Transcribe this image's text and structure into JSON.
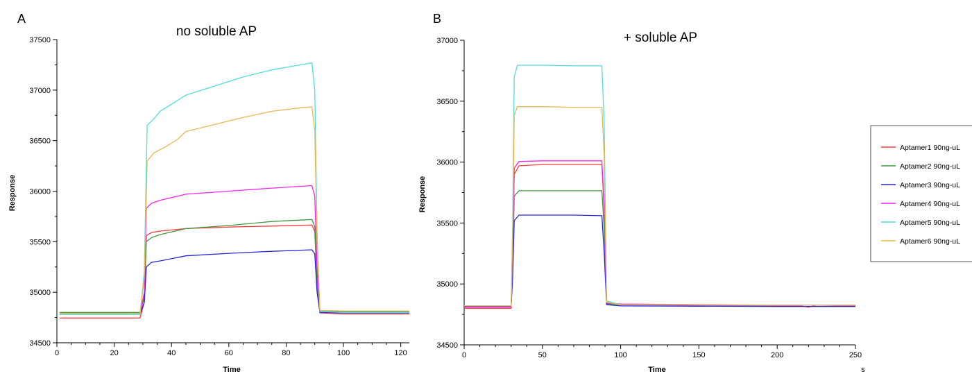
{
  "chart_data": [
    {
      "panel_label": "A",
      "type": "line",
      "title": "no soluble AP",
      "xlabel": "Time",
      "ylabel": "Response",
      "xlim": [
        0,
        123
      ],
      "ylim": [
        34500,
        37500
      ],
      "xticks": [
        0,
        20,
        40,
        60,
        80,
        100,
        120
      ],
      "yticks": [
        34500,
        35000,
        35500,
        36000,
        36500,
        37000,
        37500
      ],
      "x_minor_step": 5,
      "series": [
        {
          "color": "#ff3b3b",
          "points": [
            [
              1,
              34745
            ],
            [
              29,
              34745
            ],
            [
              30.5,
              34900
            ],
            [
              31.2,
              35560
            ],
            [
              33,
              35590
            ],
            [
              36,
              35605
            ],
            [
              45,
              35630
            ],
            [
              60,
              35645
            ],
            [
              75,
              35655
            ],
            [
              89,
              35665
            ],
            [
              90,
              35600
            ],
            [
              90.8,
              35100
            ],
            [
              91.8,
              34795
            ],
            [
              100,
              34785
            ],
            [
              123,
              34785
            ]
          ]
        },
        {
          "color": "#3c9a3c",
          "points": [
            [
              1,
              34800
            ],
            [
              29,
              34800
            ],
            [
              30.5,
              34950
            ],
            [
              31.2,
              35500
            ],
            [
              33,
              35540
            ],
            [
              36,
              35570
            ],
            [
              45,
              35630
            ],
            [
              60,
              35660
            ],
            [
              75,
              35700
            ],
            [
              89,
              35720
            ],
            [
              90,
              35650
            ],
            [
              90.8,
              35150
            ],
            [
              91.8,
              34810
            ],
            [
              100,
              34810
            ],
            [
              123,
              34810
            ]
          ]
        },
        {
          "color": "#2424e0",
          "points": [
            [
              1,
              34785
            ],
            [
              29,
              34785
            ],
            [
              30.5,
              34900
            ],
            [
              31.2,
              35250
            ],
            [
              33,
              35295
            ],
            [
              36,
              35310
            ],
            [
              45,
              35360
            ],
            [
              60,
              35385
            ],
            [
              75,
              35405
            ],
            [
              89,
              35420
            ],
            [
              90,
              35380
            ],
            [
              90.8,
              35000
            ],
            [
              91.8,
              34800
            ],
            [
              100,
              34795
            ],
            [
              123,
              34795
            ]
          ]
        },
        {
          "color": "#f224f2",
          "points": [
            [
              1,
              34790
            ],
            [
              29,
              34790
            ],
            [
              30.5,
              35000
            ],
            [
              31.2,
              35830
            ],
            [
              33,
              35880
            ],
            [
              36,
              35910
            ],
            [
              45,
              35970
            ],
            [
              60,
              36000
            ],
            [
              75,
              36030
            ],
            [
              89,
              36055
            ],
            [
              90,
              35950
            ],
            [
              90.8,
              35250
            ],
            [
              91.8,
              34810
            ],
            [
              100,
              34800
            ],
            [
              123,
              34800
            ]
          ]
        },
        {
          "color": "#4fdcdc",
          "points": [
            [
              1,
              34780
            ],
            [
              29,
              34780
            ],
            [
              30.5,
              35200
            ],
            [
              31.5,
              36650
            ],
            [
              34,
              36720
            ],
            [
              36,
              36790
            ],
            [
              40,
              36860
            ],
            [
              45,
              36950
            ],
            [
              55,
              37040
            ],
            [
              65,
              37130
            ],
            [
              75,
              37200
            ],
            [
              85,
              37250
            ],
            [
              89,
              37270
            ],
            [
              90,
              37000
            ],
            [
              90.8,
              35600
            ],
            [
              91.8,
              34810
            ],
            [
              100,
              34800
            ],
            [
              123,
              34800
            ]
          ]
        },
        {
          "color": "#e9b74e",
          "points": [
            [
              1,
              34790
            ],
            [
              29,
              34790
            ],
            [
              30.5,
              35150
            ],
            [
              31.5,
              36300
            ],
            [
              34,
              36380
            ],
            [
              38,
              36440
            ],
            [
              42,
              36510
            ],
            [
              45,
              36590
            ],
            [
              55,
              36660
            ],
            [
              65,
              36730
            ],
            [
              75,
              36790
            ],
            [
              85,
              36825
            ],
            [
              89,
              36835
            ],
            [
              90,
              36600
            ],
            [
              90.8,
              35500
            ],
            [
              91.8,
              34820
            ],
            [
              100,
              34815
            ],
            [
              123,
              34815
            ]
          ]
        }
      ]
    },
    {
      "panel_label": "B",
      "type": "line",
      "title": "+ soluble AP",
      "xlabel": "Time",
      "ylabel": "Response",
      "x_unit_label": "s",
      "xlim": [
        0,
        250
      ],
      "ylim": [
        34500,
        37000
      ],
      "xticks": [
        0,
        50,
        100,
        150,
        200,
        250
      ],
      "yticks": [
        34500,
        35000,
        35500,
        36000,
        36500,
        37000
      ],
      "x_minor_step": 10,
      "legend": {
        "position": "right",
        "entries": [
          {
            "label": "Aptamer1 90ng-uL",
            "color": "#ff3b3b"
          },
          {
            "label": "Aptamer2 90ng-uL",
            "color": "#3c9a3c"
          },
          {
            "label": "Aptamer3 90ng-uL",
            "color": "#2424e0"
          },
          {
            "label": "Aptamer4 90ng-uL",
            "color": "#f224f2"
          },
          {
            "label": "Aptamer5 90ng-uL",
            "color": "#4fdcdc"
          },
          {
            "label": "Aptamer6 90ng-uL",
            "color": "#e9b74e"
          }
        ]
      },
      "series": [
        {
          "color": "#ff3b3b",
          "points": [
            [
              0,
              34800
            ],
            [
              30,
              34800
            ],
            [
              31,
              35200
            ],
            [
              32,
              35900
            ],
            [
              35,
              35970
            ],
            [
              50,
              35980
            ],
            [
              70,
              35980
            ],
            [
              88,
              35980
            ],
            [
              89.5,
              35600
            ],
            [
              91,
              34840
            ],
            [
              100,
              34830
            ],
            [
              200,
              34820
            ],
            [
              215,
              34820
            ],
            [
              220,
              34810
            ],
            [
              225,
              34825
            ],
            [
              250,
              34820
            ]
          ]
        },
        {
          "color": "#3c9a3c",
          "points": [
            [
              0,
              34815
            ],
            [
              30,
              34815
            ],
            [
              31,
              35100
            ],
            [
              32,
              35720
            ],
            [
              35,
              35765
            ],
            [
              50,
              35765
            ],
            [
              70,
              35765
            ],
            [
              88,
              35765
            ],
            [
              89.5,
              35450
            ],
            [
              91,
              34835
            ],
            [
              100,
              34830
            ],
            [
              200,
              34825
            ],
            [
              250,
              34825
            ]
          ]
        },
        {
          "color": "#2424e0",
          "points": [
            [
              0,
              34815
            ],
            [
              30,
              34815
            ],
            [
              31,
              35050
            ],
            [
              32,
              35520
            ],
            [
              35,
              35565
            ],
            [
              50,
              35565
            ],
            [
              70,
              35565
            ],
            [
              88,
              35560
            ],
            [
              89.5,
              35250
            ],
            [
              91,
              34830
            ],
            [
              100,
              34820
            ],
            [
              200,
              34815
            ],
            [
              250,
              34815
            ]
          ]
        },
        {
          "color": "#f224f2",
          "points": [
            [
              0,
              34810
            ],
            [
              30,
              34810
            ],
            [
              31,
              35300
            ],
            [
              32,
              35950
            ],
            [
              35,
              36005
            ],
            [
              50,
              36010
            ],
            [
              70,
              36010
            ],
            [
              88,
              36010
            ],
            [
              89.5,
              35650
            ],
            [
              91,
              34845
            ],
            [
              100,
              34835
            ],
            [
              200,
              34825
            ],
            [
              250,
              34825
            ]
          ]
        },
        {
          "color": "#4fdcdc",
          "points": [
            [
              0,
              34820
            ],
            [
              30,
              34820
            ],
            [
              31,
              35500
            ],
            [
              32,
              36700
            ],
            [
              34,
              36795
            ],
            [
              50,
              36795
            ],
            [
              70,
              36790
            ],
            [
              88,
              36790
            ],
            [
              89.5,
              36300
            ],
            [
              91,
              34860
            ],
            [
              100,
              34830
            ],
            [
              200,
              34825
            ],
            [
              250,
              34825
            ]
          ]
        },
        {
          "color": "#e9b74e",
          "points": [
            [
              0,
              34820
            ],
            [
              30,
              34820
            ],
            [
              31,
              35400
            ],
            [
              32,
              36380
            ],
            [
              34,
              36455
            ],
            [
              50,
              36455
            ],
            [
              70,
              36450
            ],
            [
              88,
              36450
            ],
            [
              89.5,
              36050
            ],
            [
              91,
              34850
            ],
            [
              100,
              34830
            ],
            [
              200,
              34825
            ],
            [
              250,
              34825
            ]
          ]
        }
      ]
    }
  ]
}
